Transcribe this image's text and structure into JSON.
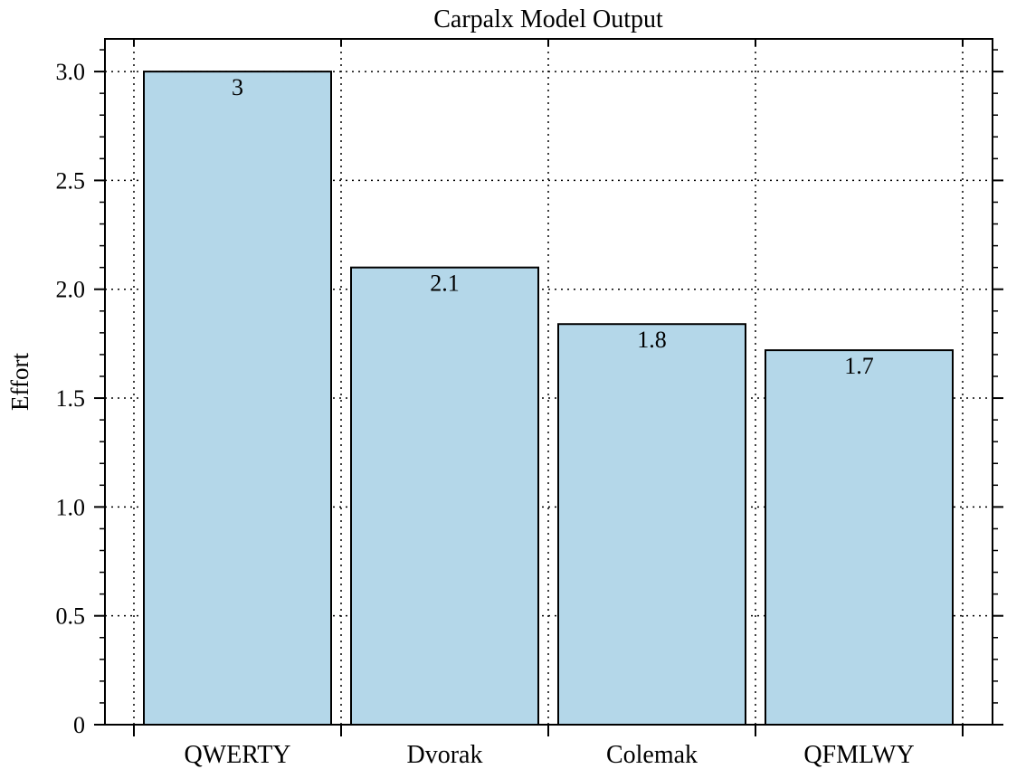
{
  "chart_data": {
    "type": "bar",
    "title": "Carpalx Model Output",
    "xlabel": "",
    "ylabel": "Effort",
    "categories": [
      "QWERTY",
      "Dvorak",
      "Colemak",
      "QFMLWY"
    ],
    "values": [
      3.0,
      2.1,
      1.84,
      1.72
    ],
    "data_labels": [
      "3",
      "2.1",
      "1.8",
      "1.7"
    ],
    "ylim": [
      0,
      3.15
    ],
    "yticks": [
      0,
      0.5,
      1.0,
      1.5,
      2.0,
      2.5,
      3.0
    ],
    "ytick_labels": [
      "0",
      "0.5",
      "1.0",
      "1.5",
      "2.0",
      "2.5",
      "3.0"
    ],
    "grid": true,
    "bar_color": "#b4d7e9",
    "legend": "none"
  }
}
